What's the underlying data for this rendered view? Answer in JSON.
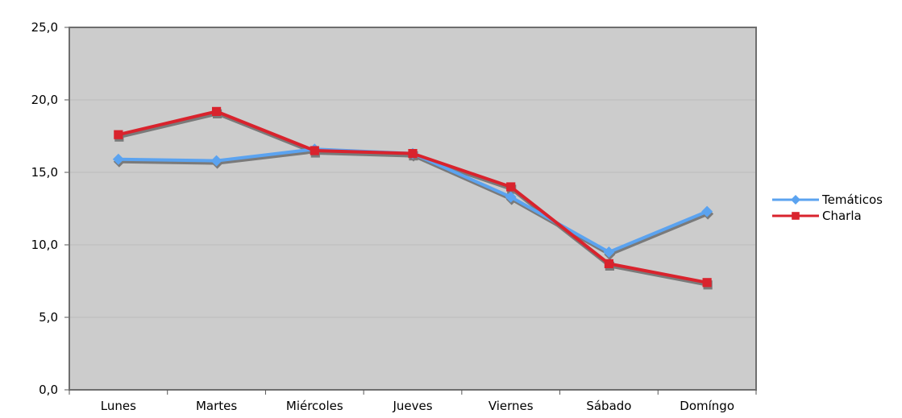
{
  "chart_data": {
    "type": "line",
    "categories": [
      "Lunes",
      "Martes",
      "Miércoles",
      "Jueves",
      "Viernes",
      "Sábado",
      "Domíngo"
    ],
    "series": [
      {
        "name": "Temáticos",
        "color": "#5ba3f0",
        "marker": "diamond",
        "values": [
          15.9,
          15.8,
          16.6,
          16.3,
          13.3,
          9.5,
          12.3
        ]
      },
      {
        "name": "Charla",
        "color": "#d9232d",
        "marker": "square",
        "values": [
          17.6,
          19.2,
          16.5,
          16.3,
          14.0,
          8.7,
          7.4
        ]
      }
    ],
    "ylim": [
      0,
      25
    ],
    "yticks": [
      "0,0",
      "5,0",
      "10,0",
      "15,0",
      "20,0",
      "25,0"
    ],
    "grid": true,
    "legend_position": "right",
    "plot_background": "#cccccc",
    "shadow_color": "#7a7a7a"
  }
}
